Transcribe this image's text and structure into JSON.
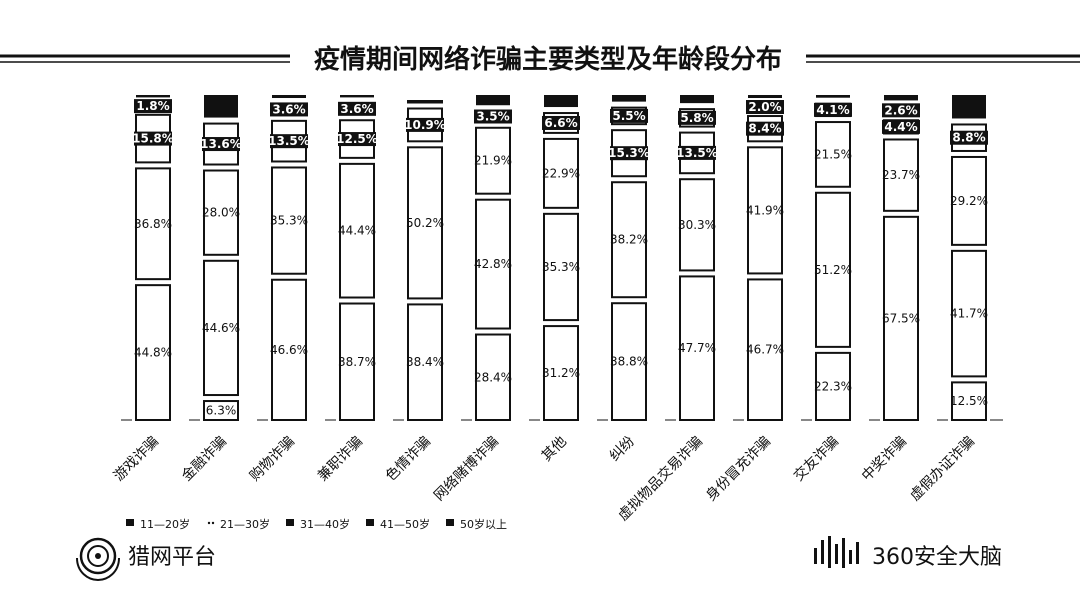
{
  "chart_data": {
    "type": "bar",
    "stacked": true,
    "title": "疫情期间网络诈骗主要类型及年龄段分布",
    "categories": [
      "游戏诈骗",
      "金融诈骗",
      "购物诈骗",
      "兼职诈骗",
      "色情诈骗",
      "网络赌博诈骗",
      "其他",
      "纠纷",
      "虚拟物品交易诈骗",
      "身份冒充诈骗",
      "交友诈骗",
      "中奖诈骗",
      "虚假办证诈骗"
    ],
    "ylim": [
      0,
      100
    ],
    "legend_position": "bottom-left",
    "series": [
      {
        "name": "11—20岁",
        "color": "#ffffff",
        "values": [
          44.8,
          6.3,
          46.6,
          38.7,
          38.4,
          28.4,
          31.2,
          38.8,
          47.7,
          46.7,
          22.3,
          67.5,
          12.5
        ],
        "labels": [
          "44.8%",
          "6.3%",
          "46.6%",
          "38.7%",
          "38.4%",
          "28.4%",
          "31.2%",
          "38.8%",
          "47.7%",
          "46.7%",
          "22.3%",
          "67.5%",
          "12.5%"
        ]
      },
      {
        "name": "21—30岁",
        "color": "#ffffff",
        "values": [
          36.8,
          44.6,
          35.3,
          44.4,
          50.2,
          42.8,
          35.3,
          38.2,
          30.3,
          41.9,
          51.2,
          23.7,
          41.7
        ],
        "labels": [
          "36.8%",
          "44.6%",
          "35.3%",
          "44.4%",
          "50.2%",
          "42.8%",
          "35.3%",
          "38.2%",
          "30.3%",
          "41.9%",
          "51.2%",
          "23.7%",
          "41.7%"
        ]
      },
      {
        "name": "31—40岁",
        "color": "#ffffff",
        "values": [
          15.8,
          28.0,
          13.5,
          12.5,
          10.9,
          21.9,
          22.9,
          15.3,
          13.5,
          8.4,
          21.5,
          4.4,
          29.2
        ],
        "labels": [
          "15.8%",
          "28.0%",
          "13.5%",
          "12.5%",
          "10.9%",
          "21.9%",
          "22.9%",
          "15.3%",
          "13.5%",
          "8.4%",
          "21.5%",
          "4.4%",
          "29.2%"
        ]
      },
      {
        "name": "41—50岁",
        "color": "#ffffff",
        "values": [
          1.8,
          13.6,
          3.6,
          3.6,
          0.5,
          3.5,
          6.6,
          5.5,
          5.8,
          2.0,
          4.1,
          2.6,
          8.8
        ],
        "labels": [
          "1.8%",
          "13.6%",
          "3.6%",
          "3.6%",
          "",
          "3.5%",
          "6.6%",
          "5.5%",
          "5.8%",
          "2.0%",
          "4.1%",
          "2.6%",
          "8.8%"
        ]
      },
      {
        "name": "50岁以上",
        "color": "#111111",
        "values": [
          0.8,
          7.5,
          1.0,
          0.8,
          0.0,
          3.4,
          4.0,
          2.2,
          2.7,
          1.0,
          0.9,
          1.8,
          7.8
        ],
        "labels": [
          "",
          "",
          "",
          "",
          "",
          "",
          "",
          "",
          "",
          "",
          "",
          "",
          ""
        ]
      }
    ]
  },
  "logos": {
    "left": "猎网平台",
    "right": "360安全大脑"
  }
}
